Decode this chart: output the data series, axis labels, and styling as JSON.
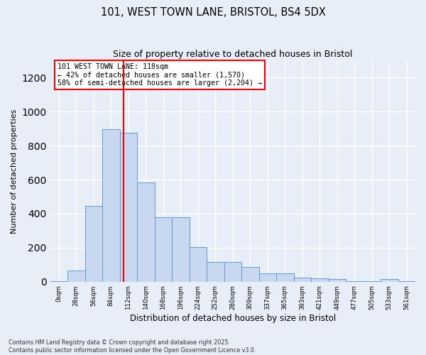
{
  "title1": "101, WEST TOWN LANE, BRISTOL, BS4 5DX",
  "title2": "Size of property relative to detached houses in Bristol",
  "xlabel": "Distribution of detached houses by size in Bristol",
  "ylabel": "Number of detached properties",
  "bar_color": "#c8d8f0",
  "bar_edge_color": "#6699cc",
  "background_color": "#e8eef8",
  "grid_color": "#ffffff",
  "bin_labels": [
    "0sqm",
    "28sqm",
    "56sqm",
    "84sqm",
    "112sqm",
    "140sqm",
    "168sqm",
    "196sqm",
    "224sqm",
    "252sqm",
    "280sqm",
    "309sqm",
    "337sqm",
    "365sqm",
    "393sqm",
    "421sqm",
    "449sqm",
    "477sqm",
    "505sqm",
    "533sqm",
    "561sqm"
  ],
  "bar_heights": [
    5,
    65,
    445,
    895,
    875,
    585,
    380,
    380,
    205,
    115,
    115,
    85,
    50,
    50,
    25,
    20,
    15,
    5,
    5,
    15,
    5
  ],
  "red_line_x": 4,
  "bin_width": 1,
  "ylim": [
    0,
    1300
  ],
  "yticks": [
    0,
    200,
    400,
    600,
    800,
    1000,
    1200
  ],
  "annotation_text": "101 WEST TOWN LANE: 118sqm\n← 42% of detached houses are smaller (1,570)\n58% of semi-detached houses are larger (2,204) →",
  "footnote1": "Contains HM Land Registry data © Crown copyright and database right 2025.",
  "footnote2": "Contains public sector information licensed under the Open Government Licence v3.0."
}
